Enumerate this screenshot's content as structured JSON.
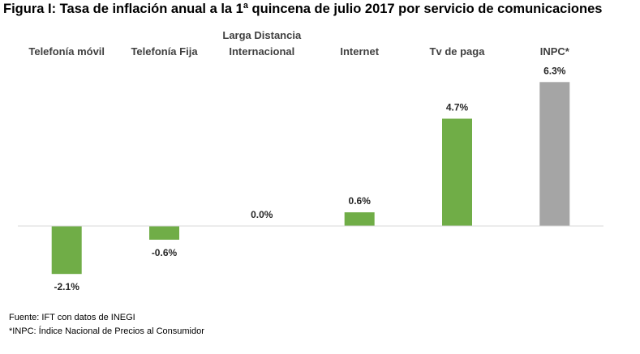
{
  "title": "Figura I: Tasa de inflación anual a la 1ª quincena de julio 2017 por servicio de comunicaciones",
  "chart_data": {
    "type": "bar",
    "title": "Figura I: Tasa de inflación anual a la 1ª quincena de julio 2017 por servicio de comunicaciones",
    "categories": [
      [
        "Telefonía móvil"
      ],
      [
        "Telefonía Fija"
      ],
      [
        "Larga Distancia",
        "Internacional"
      ],
      [
        "Internet"
      ],
      [
        "Tv de paga"
      ],
      [
        "INPC*"
      ]
    ],
    "values": [
      -2.1,
      -0.6,
      0.0,
      0.6,
      4.7,
      6.3
    ],
    "value_labels": [
      "-2.1%",
      "-0.6%",
      "0.0%",
      "0.6%",
      "4.7%",
      "6.3%"
    ],
    "colors": [
      "#70ad47",
      "#70ad47",
      "#70ad47",
      "#70ad47",
      "#70ad47",
      "#a5a5a5"
    ],
    "xlabel": "",
    "ylabel": "",
    "ylim": [
      -2.5,
      6.5
    ],
    "grid": false,
    "legend": "none"
  },
  "footnotes": {
    "source": "Fuente: IFT con datos de INEGI",
    "note": "*INPC: Índice Nacional de Precios al Consumidor"
  },
  "colors": {
    "bar": "#70ad47",
    "reference_bar": "#a5a5a5",
    "axis": "#d9d9d9"
  }
}
